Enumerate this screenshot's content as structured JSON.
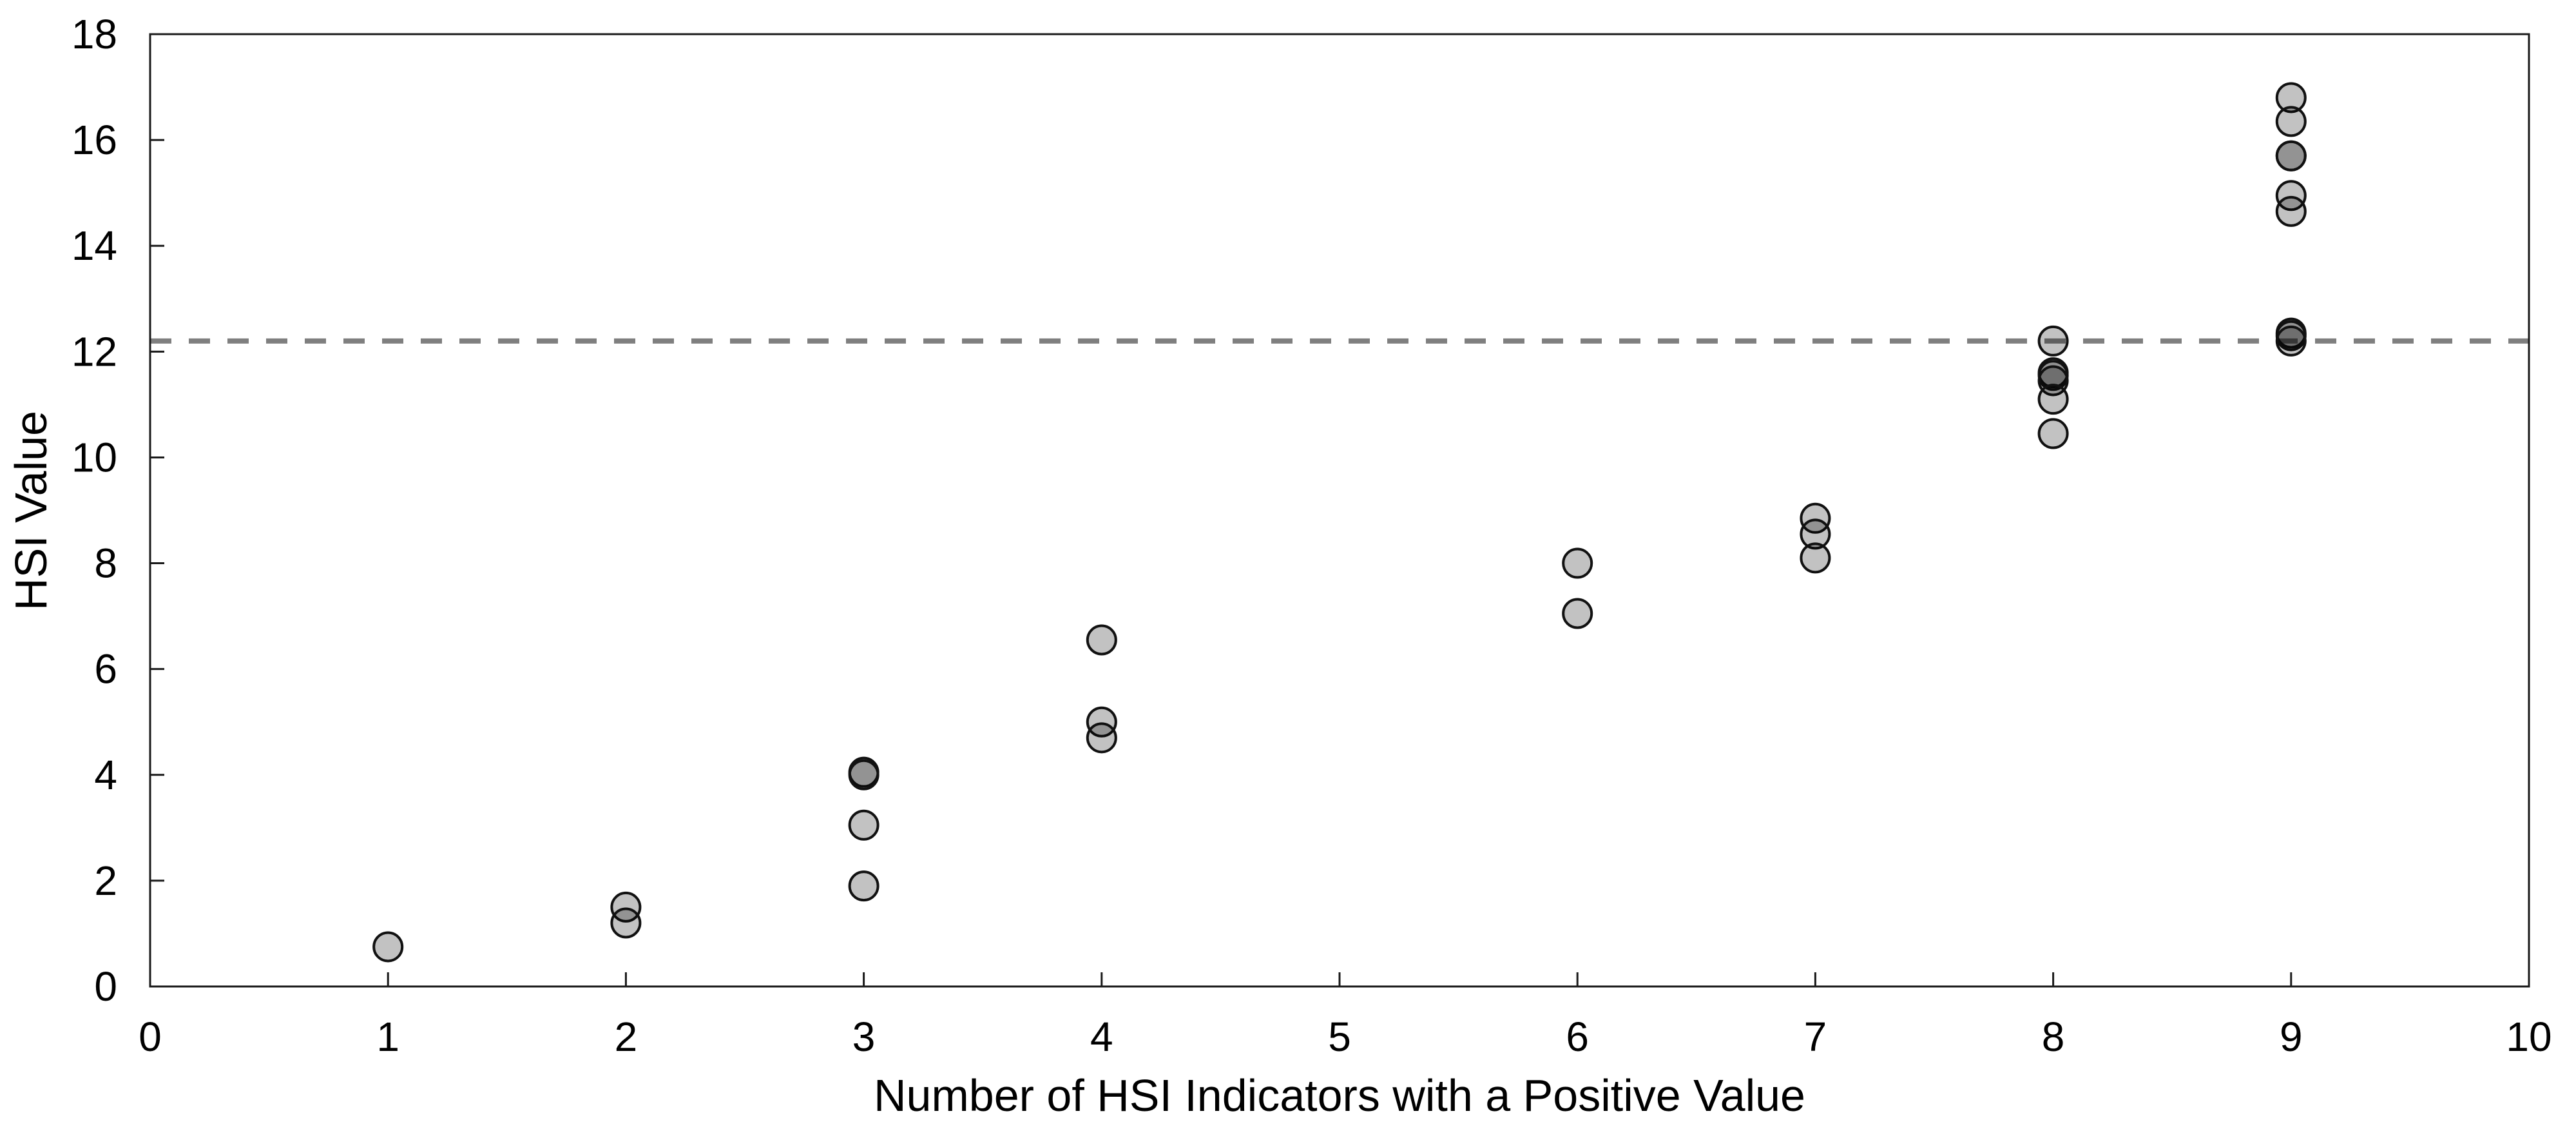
{
  "chart_data": {
    "type": "scatter",
    "title": "",
    "xlabel": "Number of HSI Indicators with a Positive Value",
    "ylabel": "HSI Value",
    "xlim": [
      0,
      10
    ],
    "ylim": [
      0,
      18
    ],
    "x_ticks": [
      "0",
      "1",
      "2",
      "3",
      "4",
      "5",
      "6",
      "7",
      "8",
      "9",
      "10"
    ],
    "x_tick_values": [
      0,
      1,
      2,
      3,
      4,
      5,
      6,
      7,
      8,
      9,
      10
    ],
    "y_ticks": [
      "0",
      "2",
      "4",
      "6",
      "8",
      "10",
      "12",
      "14",
      "16",
      "18"
    ],
    "y_tick_values": [
      0,
      2,
      4,
      6,
      8,
      10,
      12,
      14,
      16,
      18
    ],
    "grid": "off",
    "legend": "none",
    "frame": "full-box",
    "tick_direction": "inside",
    "reference_line": {
      "y": 12.2,
      "style": "dashed",
      "color": "#7F7F7F"
    },
    "marker": {
      "shape": "circle",
      "fill": "#C2C2C2",
      "stroke": "#111111",
      "overlap_darkens": true
    },
    "axis_color": "#1A1A1A",
    "points": [
      [
        1,
        0.75
      ],
      [
        2,
        1.5
      ],
      [
        2,
        1.2
      ],
      [
        3,
        4.05
      ],
      [
        3,
        4.0
      ],
      [
        3,
        3.05
      ],
      [
        3,
        1.9
      ],
      [
        4,
        6.55
      ],
      [
        4,
        5.0
      ],
      [
        4,
        4.7
      ],
      [
        6,
        8.0
      ],
      [
        6,
        7.05
      ],
      [
        7,
        8.85
      ],
      [
        7,
        8.55
      ],
      [
        7,
        8.1
      ],
      [
        8,
        12.2
      ],
      [
        8,
        11.6
      ],
      [
        8,
        11.55
      ],
      [
        8,
        11.45
      ],
      [
        8,
        11.1
      ],
      [
        8,
        10.45
      ],
      [
        9,
        16.8
      ],
      [
        9,
        16.35
      ],
      [
        9,
        15.7
      ],
      [
        9,
        15.7
      ],
      [
        9,
        14.95
      ],
      [
        9,
        14.65
      ],
      [
        9,
        12.35
      ],
      [
        9,
        12.3
      ],
      [
        9,
        12.2
      ]
    ]
  }
}
